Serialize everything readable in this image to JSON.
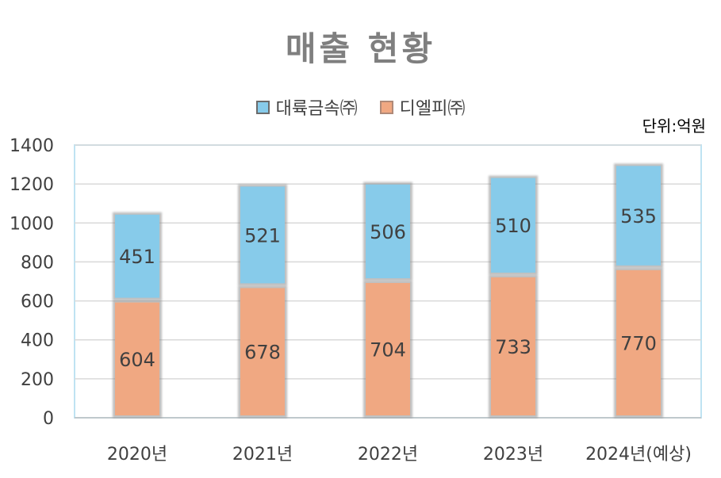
{
  "chart_data": {
    "type": "bar",
    "stacked": true,
    "title": "매출 현황",
    "unit_label": "단위:억원",
    "categories": [
      "2020년",
      "2021년",
      "2022년",
      "2023년",
      "2024년(예상)"
    ],
    "series": [
      {
        "name": "디엘피㈜",
        "values": [
          604,
          678,
          704,
          733,
          770
        ],
        "color": "#f0a882"
      },
      {
        "name": "대륙금속㈜",
        "values": [
          451,
          521,
          506,
          510,
          535
        ],
        "color": "#87cbea"
      }
    ],
    "legend_order": [
      1,
      0
    ],
    "y_ticks": [
      0,
      200,
      400,
      600,
      800,
      1000,
      1200,
      1400
    ],
    "ylim": [
      0,
      1400
    ],
    "grid": true,
    "legend_position": "top"
  }
}
